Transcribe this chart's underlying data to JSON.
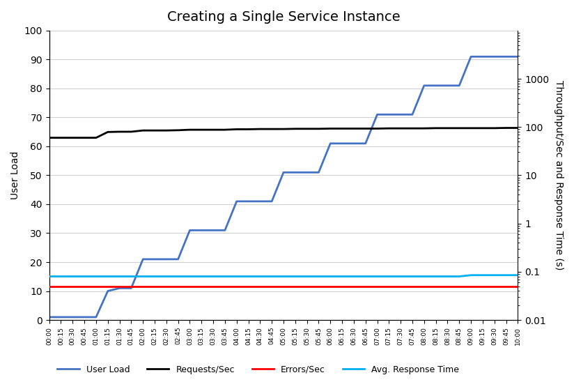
{
  "title": "Creating a Single Service Instance",
  "ylabel_left": "User Load",
  "ylabel_right": "Throughput/Sec and Response Time (s)",
  "ylim_left": [
    0,
    100
  ],
  "ylim_right": [
    0.01,
    10000
  ],
  "background_color": "#ffffff",
  "x_labels": [
    "00:00",
    "00:15",
    "00:30",
    "00:45",
    "01:00",
    "01:15",
    "01:30",
    "01:45",
    "02:00",
    "02:15",
    "02:30",
    "02:45",
    "03:00",
    "03:15",
    "03:30",
    "03:45",
    "04:00",
    "04:15",
    "04:30",
    "04:45",
    "05:00",
    "05:15",
    "05:30",
    "05:45",
    "06:00",
    "06:15",
    "06:30",
    "06:45",
    "07:00",
    "07:15",
    "07:30",
    "07:45",
    "08:00",
    "08:15",
    "08:30",
    "08:45",
    "09:00",
    "09:15",
    "09:30",
    "09:45",
    "10:00"
  ],
  "user_load": [
    1,
    1,
    1,
    1,
    1,
    10,
    11,
    11,
    21,
    21,
    21,
    21,
    31,
    31,
    31,
    31,
    41,
    41,
    41,
    41,
    51,
    51,
    51,
    51,
    61,
    61,
    61,
    61,
    71,
    71,
    71,
    71,
    81,
    81,
    81,
    81,
    91,
    91,
    91,
    91,
    91
  ],
  "requests_per_sec": [
    60,
    60,
    60,
    60,
    60,
    79,
    80,
    80,
    85,
    85,
    85,
    86,
    88,
    88,
    88,
    88,
    90,
    90,
    91,
    91,
    91,
    92,
    92,
    92,
    93,
    93,
    93,
    93,
    93,
    94,
    94,
    94,
    94,
    95,
    95,
    95,
    95,
    95,
    95,
    96,
    96
  ],
  "errors_per_sec": [
    0.05,
    0.05,
    0.05,
    0.05,
    0.05,
    0.05,
    0.05,
    0.05,
    0.05,
    0.05,
    0.05,
    0.05,
    0.05,
    0.05,
    0.05,
    0.05,
    0.05,
    0.05,
    0.05,
    0.05,
    0.05,
    0.05,
    0.05,
    0.05,
    0.05,
    0.05,
    0.05,
    0.05,
    0.05,
    0.05,
    0.05,
    0.05,
    0.05,
    0.05,
    0.05,
    0.05,
    0.05,
    0.05,
    0.05,
    0.05,
    0.05
  ],
  "avg_response_time": [
    0.08,
    0.08,
    0.08,
    0.08,
    0.08,
    0.08,
    0.08,
    0.08,
    0.08,
    0.08,
    0.08,
    0.08,
    0.08,
    0.08,
    0.08,
    0.08,
    0.08,
    0.08,
    0.08,
    0.08,
    0.08,
    0.08,
    0.08,
    0.08,
    0.08,
    0.08,
    0.08,
    0.08,
    0.08,
    0.08,
    0.08,
    0.08,
    0.08,
    0.08,
    0.08,
    0.08,
    0.085,
    0.085,
    0.085,
    0.085,
    0.085
  ],
  "user_load_color": "#4472C4",
  "requests_color": "#000000",
  "errors_color": "#FF0000",
  "response_color": "#00B0F0",
  "line_width": 2.0,
  "title_fontsize": 14,
  "axis_fontsize": 10,
  "legend_fontsize": 9
}
